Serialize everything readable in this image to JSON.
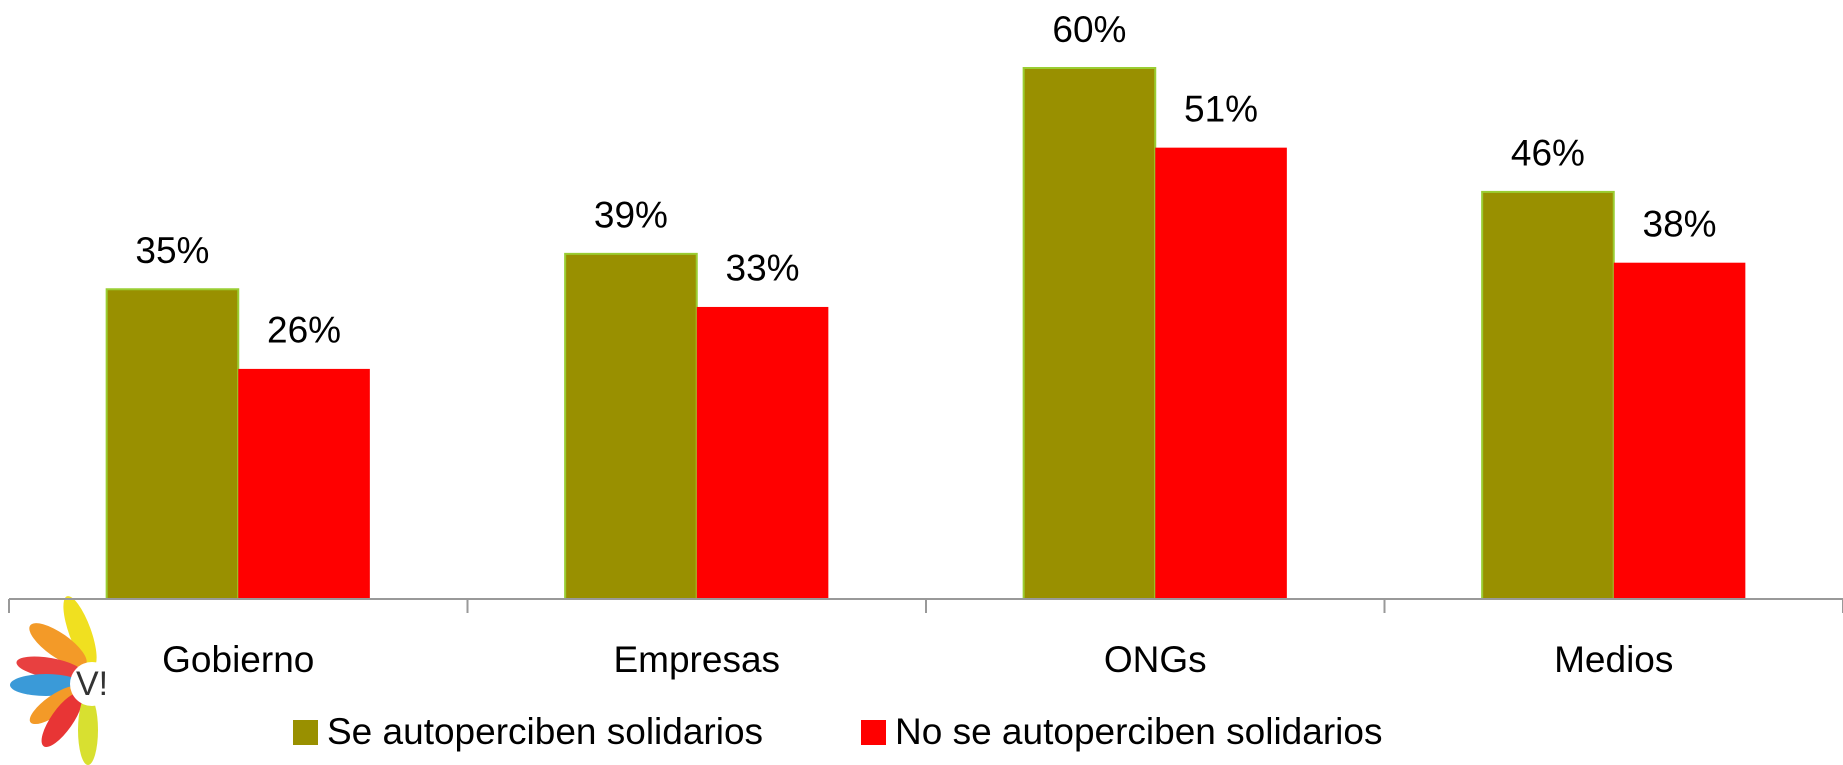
{
  "chart_data": {
    "type": "bar",
    "categories": [
      "Gobierno",
      "Empresas",
      "ONGs",
      "Medios"
    ],
    "series": [
      {
        "name": "Se autoperciben solidarios",
        "color": "#999000",
        "values": [
          35,
          39,
          60,
          46
        ],
        "value_labels": [
          "35%",
          "39%",
          "60%",
          "46%"
        ]
      },
      {
        "name": "No se autoperciben solidarios",
        "color": "#ff0000",
        "values": [
          26,
          33,
          51,
          38
        ],
        "value_labels": [
          "26%",
          "33%",
          "51%",
          "38%"
        ]
      }
    ],
    "legend": "bottom"
  },
  "logo": {
    "text": "V!"
  }
}
